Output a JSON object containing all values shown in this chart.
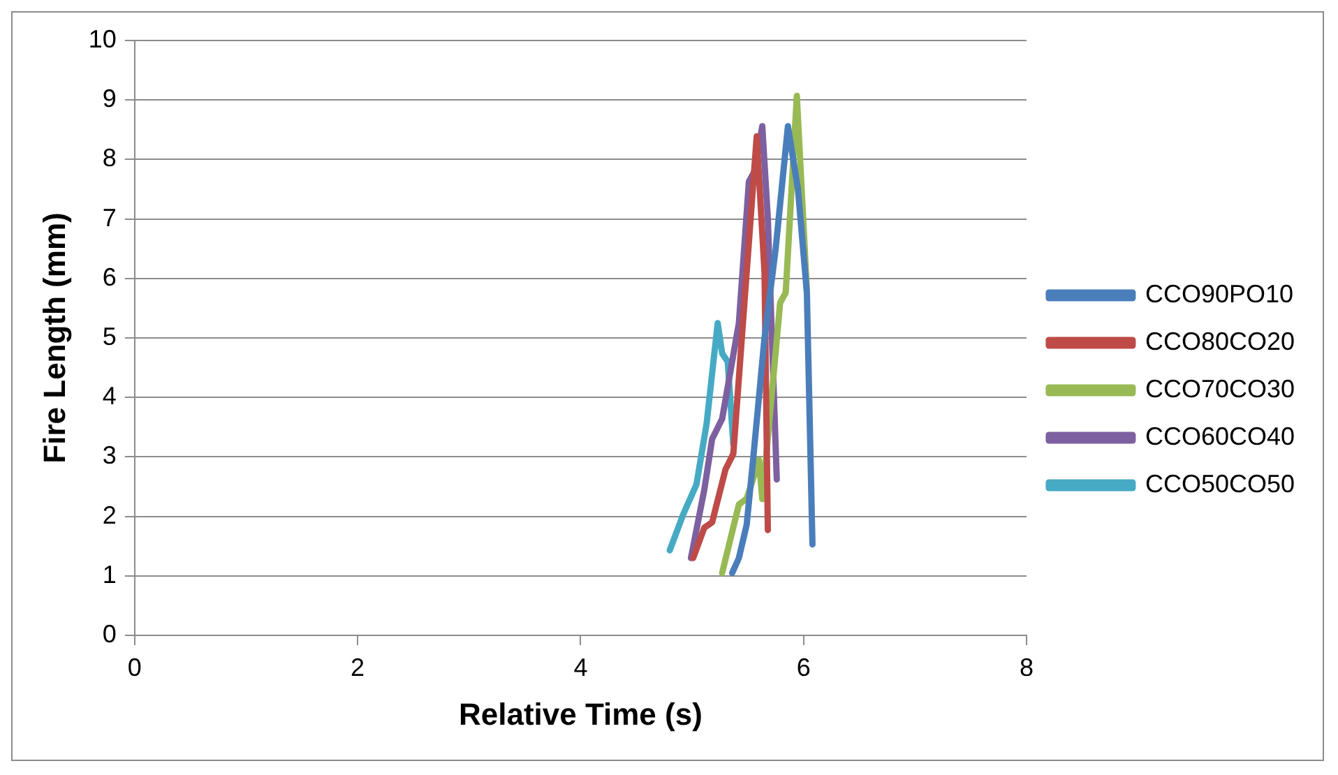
{
  "chart_data": {
    "type": "line",
    "xlabel": "Relative Time (s)",
    "ylabel": "Fire Length (mm)",
    "xlim": [
      0,
      8
    ],
    "xticks": [
      0,
      2,
      4,
      6,
      8
    ],
    "ylim": [
      0,
      10
    ],
    "yticks": [
      0,
      1,
      2,
      3,
      4,
      5,
      6,
      7,
      8,
      9,
      10
    ],
    "grid": "y",
    "legend": "right",
    "marker": "none",
    "line_style": "solid",
    "series": [
      {
        "name": "CCO90PO10",
        "color": "#4a7ebb",
        "x": [
          5.36,
          5.42,
          5.49,
          5.55,
          5.65,
          5.75,
          5.86,
          5.95,
          6.03,
          6.08
        ],
        "values": [
          1.05,
          1.3,
          1.86,
          3.0,
          5.0,
          6.5,
          8.56,
          7.5,
          5.76,
          1.53
        ]
      },
      {
        "name": "CCO80CO20",
        "color": "#be4b48",
        "x": [
          5.01,
          5.11,
          5.18,
          5.3,
          5.37,
          5.58,
          5.65,
          5.68
        ],
        "values": [
          1.3,
          1.81,
          1.9,
          2.79,
          3.05,
          8.39,
          6.1,
          1.77
        ]
      },
      {
        "name": "CCO70CO30",
        "color": "#98b954",
        "x": [
          5.27,
          5.42,
          5.49,
          5.56,
          5.6,
          5.63,
          5.79,
          5.84,
          5.94,
          6.03
        ],
        "values": [
          1.05,
          2.2,
          2.3,
          2.7,
          2.95,
          2.29,
          5.59,
          5.76,
          9.07,
          5.8
        ]
      },
      {
        "name": "CCO60CO40",
        "color": "#7d60a0",
        "x": [
          4.99,
          5.11,
          5.18,
          5.27,
          5.42,
          5.51,
          5.56,
          5.63,
          5.68,
          5.76
        ],
        "values": [
          1.3,
          2.45,
          3.3,
          3.64,
          5.25,
          7.63,
          7.8,
          8.56,
          7.0,
          2.62
        ]
      },
      {
        "name": "CCO50CO50",
        "color": "#46aac5",
        "x": [
          4.8,
          4.92,
          5.04,
          5.13,
          5.23,
          5.27,
          5.32,
          5.37
        ],
        "values": [
          1.43,
          2.03,
          2.54,
          3.55,
          5.25,
          4.74,
          4.6,
          3.21
        ]
      }
    ]
  }
}
